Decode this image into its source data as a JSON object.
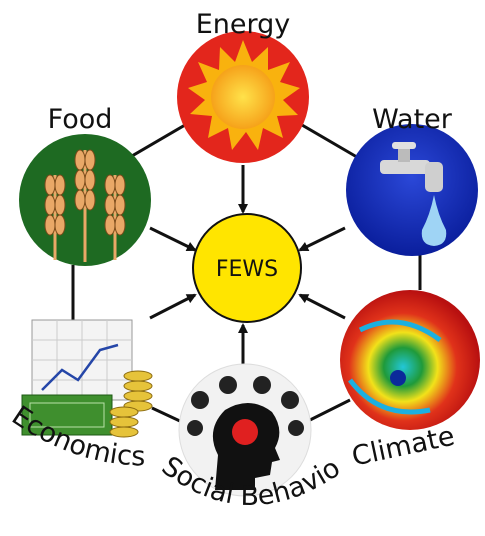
{
  "center": {
    "label": "FEWS"
  },
  "nodes": [
    {
      "label": "Energy"
    },
    {
      "label": "Food"
    },
    {
      "label": "Water"
    },
    {
      "label": "Economics"
    },
    {
      "label": "Climate"
    },
    {
      "label": "Social Behavior"
    }
  ]
}
